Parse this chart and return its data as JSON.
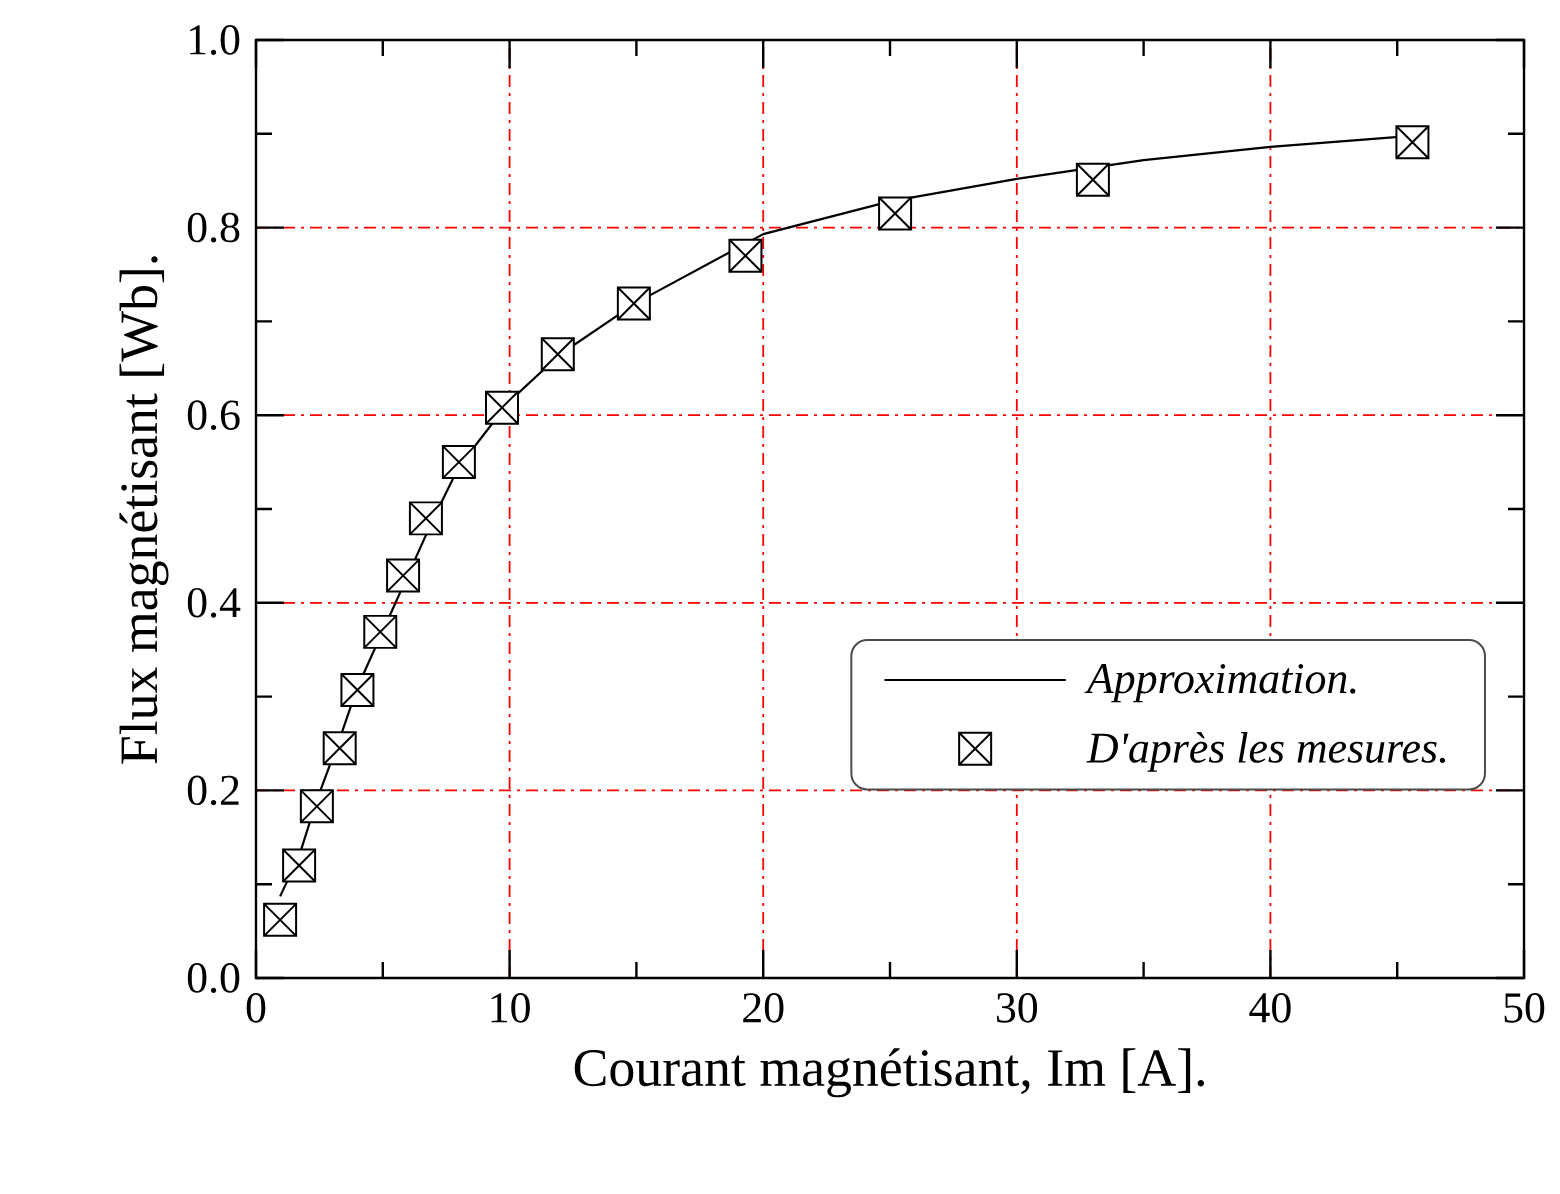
{
  "chart_data": {
    "type": "scatter",
    "xlabel": "Courant magnétisant, Im [A].",
    "ylabel": "Flux magnétisant [Wb].",
    "xlim": [
      0,
      50
    ],
    "ylim": [
      0,
      1.0
    ],
    "xticks": [
      0,
      10,
      20,
      30,
      40,
      50
    ],
    "yticks": [
      {
        "value": 0,
        "label": "0.0"
      },
      {
        "value": 0.2,
        "label": "0.2"
      },
      {
        "value": 0.4,
        "label": "0.4"
      },
      {
        "value": 0.6,
        "label": "0.6"
      },
      {
        "value": 0.8,
        "label": "0.8"
      },
      {
        "value": 1.0,
        "label": "1.0"
      }
    ],
    "grid": true,
    "legend": "bottom right",
    "series": [
      {
        "name": "Approximation.",
        "type": "line",
        "color": "#000000",
        "marker": "none",
        "line_style": "solid",
        "x": [
          0.95,
          1.7,
          2.4,
          3.3,
          4.0,
          5.0,
          6.0,
          7.0,
          8.0,
          10.0,
          12.0,
          15.0,
          20.0,
          25.0,
          30.0,
          35.0,
          40.0,
          45.7
        ],
        "values": [
          0.087,
          0.13,
          0.19,
          0.255,
          0.31,
          0.37,
          0.43,
          0.49,
          0.545,
          0.615,
          0.665,
          0.72,
          0.793,
          0.828,
          0.852,
          0.872,
          0.886,
          0.898
        ]
      },
      {
        "name": "D'après les mesures.",
        "color": "#000000",
        "marker": "square",
        "x": [
          0.95,
          1.7,
          2.4,
          3.3,
          4.0,
          4.9,
          5.8,
          6.7,
          8.0,
          9.7,
          11.9,
          14.9,
          19.3,
          25.2,
          33.0,
          45.6
        ],
        "values": [
          0.062,
          0.12,
          0.183,
          0.245,
          0.307,
          0.369,
          0.429,
          0.49,
          0.55,
          0.608,
          0.665,
          0.719,
          0.77,
          0.815,
          0.851,
          0.891
        ]
      }
    ]
  }
}
